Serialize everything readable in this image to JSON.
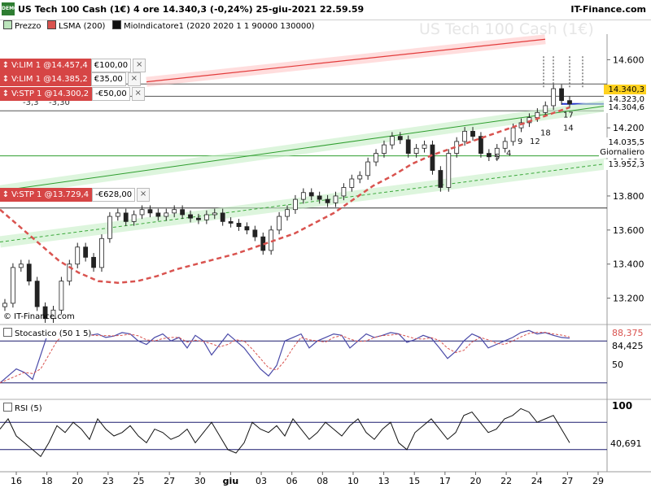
{
  "header": {
    "title": "US Tech 100 Cash (1€) 4 ore 14.340,3 (-0,24%) 25-giu-2021 22.59.59",
    "brand": "IT-Finance.com",
    "logo_text": "DEMO"
  },
  "legend": [
    {
      "label": "Prezzo",
      "color": "#bde5bd"
    },
    {
      "label": "LSMA (200)",
      "color": "#d9534f"
    },
    {
      "label": "MioIndicatore1 (2020 2020 1 1 90000 130000)",
      "color": "#111111"
    }
  ],
  "watermark": "US Tech 100 Cash (1€)",
  "source_label": "© IT-Finance.com",
  "orders": [
    {
      "arrow": "↕",
      "label": "V:LIM 1 @14.457,4",
      "value": "€100,00"
    },
    {
      "arrow": "↕",
      "label": "V:LIM 1 @14.385,2",
      "value": "€35,00"
    },
    {
      "arrow": "↕",
      "label": "V:STP 1 @14.300,2",
      "value": "-€50,00"
    },
    {
      "arrow": "↕",
      "label": "V:STP 1 @13.729,4",
      "value": "-€628,00"
    }
  ],
  "partial_labels": [
    "-3,3",
    "-3,30"
  ],
  "price_tags": [
    {
      "text": "14.340,3",
      "bg": "#ffd21f"
    },
    {
      "text": "14.323,0",
      "bg": "#ffffff"
    },
    {
      "text": "14.304,6",
      "bg": "#ffffff"
    },
    {
      "text": "14.035,5",
      "bg": "#ffffff"
    },
    {
      "text": "Giornaliero",
      "bg": "#ffffff"
    },
    {
      "text": "13.952,3",
      "bg": "#ffffff"
    }
  ],
  "wave_labels": [
    "5",
    "4",
    "9",
    "12",
    "18",
    "14",
    "17"
  ],
  "chart_data": [
    {
      "type": "line",
      "title": "US Tech 100 Cash (1€) 4 ore",
      "y_ticks": [
        "14.600",
        "14.400",
        "14.200",
        "14.000",
        "13.800",
        "13.600",
        "13.400",
        "13.200"
      ],
      "ylim": [
        13050,
        14750
      ],
      "x_ticks": [
        "16",
        "18",
        "20",
        "23",
        "25",
        "27",
        "30",
        "giu",
        "03",
        "06",
        "08",
        "10",
        "13",
        "15",
        "17",
        "20",
        "22",
        "24",
        "27",
        "29"
      ],
      "series": [
        {
          "name": "Prezzo",
          "values": [
            13170,
            13380,
            13400,
            13300,
            13150,
            13080,
            13130,
            13300,
            13400,
            13500,
            13440,
            13380,
            13550,
            13680,
            13700,
            13650,
            13690,
            13720,
            13700,
            13680,
            13700,
            13720,
            13690,
            13670,
            13660,
            13690,
            13700,
            13650,
            13640,
            13620,
            13600,
            13560,
            13480,
            13600,
            13680,
            13720,
            13780,
            13820,
            13800,
            13780,
            13760,
            13800,
            13850,
            13900,
            13920,
            14000,
            14050,
            14100,
            14150,
            14130,
            14050,
            14080,
            14100,
            13950,
            13850,
            14050,
            14120,
            14180,
            14150,
            14050,
            14030,
            14080,
            14120,
            14200,
            14230,
            14260,
            14290,
            14330,
            14430,
            14360,
            14340
          ]
        },
        {
          "name": "LSMA (200)",
          "values": [
            13720,
            13620,
            13520,
            13420,
            13350,
            13300,
            13290,
            13300,
            13330,
            13370,
            13400,
            13430,
            13460,
            13500,
            13540,
            13580,
            13640,
            13700,
            13780,
            13860,
            13920,
            13990,
            14040,
            14080,
            14120,
            14160,
            14200,
            14240,
            14280,
            14320
          ]
        }
      ]
    },
    {
      "type": "line",
      "title": "Stocastico (50 1 5)",
      "ylim": [
        0,
        100
      ],
      "y_ticks": [
        "50"
      ],
      "last_values": [
        "88,375",
        "84,425"
      ],
      "series": [
        {
          "name": "Stocastico",
          "values": [
            20,
            30,
            40,
            35,
            25,
            60,
            95,
            85,
            90,
            92,
            85,
            88,
            90,
            85,
            87,
            92,
            90,
            80,
            75,
            85,
            90,
            80,
            85,
            70,
            88,
            80,
            60,
            75,
            90,
            80,
            70,
            55,
            40,
            30,
            45,
            80,
            85,
            90,
            70,
            80,
            85,
            90,
            88,
            70,
            80,
            90,
            85,
            88,
            92,
            90,
            78,
            82,
            88,
            84,
            70,
            55,
            65,
            80,
            90,
            85,
            70,
            75,
            80,
            85,
            92,
            95,
            90,
            92,
            88,
            85,
            84
          ]
        }
      ]
    },
    {
      "type": "line",
      "title": "RSI (5)",
      "ylim": [
        0,
        100
      ],
      "y_ticks": [
        "100"
      ],
      "last_values": [
        "40,691"
      ],
      "series": [
        {
          "name": "RSI",
          "values": [
            60,
            75,
            50,
            40,
            30,
            20,
            40,
            65,
            55,
            70,
            60,
            45,
            75,
            60,
            50,
            55,
            65,
            50,
            40,
            60,
            55,
            45,
            50,
            60,
            40,
            55,
            70,
            50,
            30,
            25,
            40,
            70,
            60,
            55,
            65,
            50,
            75,
            60,
            45,
            55,
            70,
            60,
            50,
            65,
            75,
            55,
            45,
            60,
            70,
            40,
            30,
            55,
            65,
            75,
            60,
            45,
            55,
            80,
            85,
            70,
            55,
            60,
            75,
            80,
            90,
            85,
            70,
            75,
            80,
            60,
            40
          ]
        }
      ]
    }
  ]
}
